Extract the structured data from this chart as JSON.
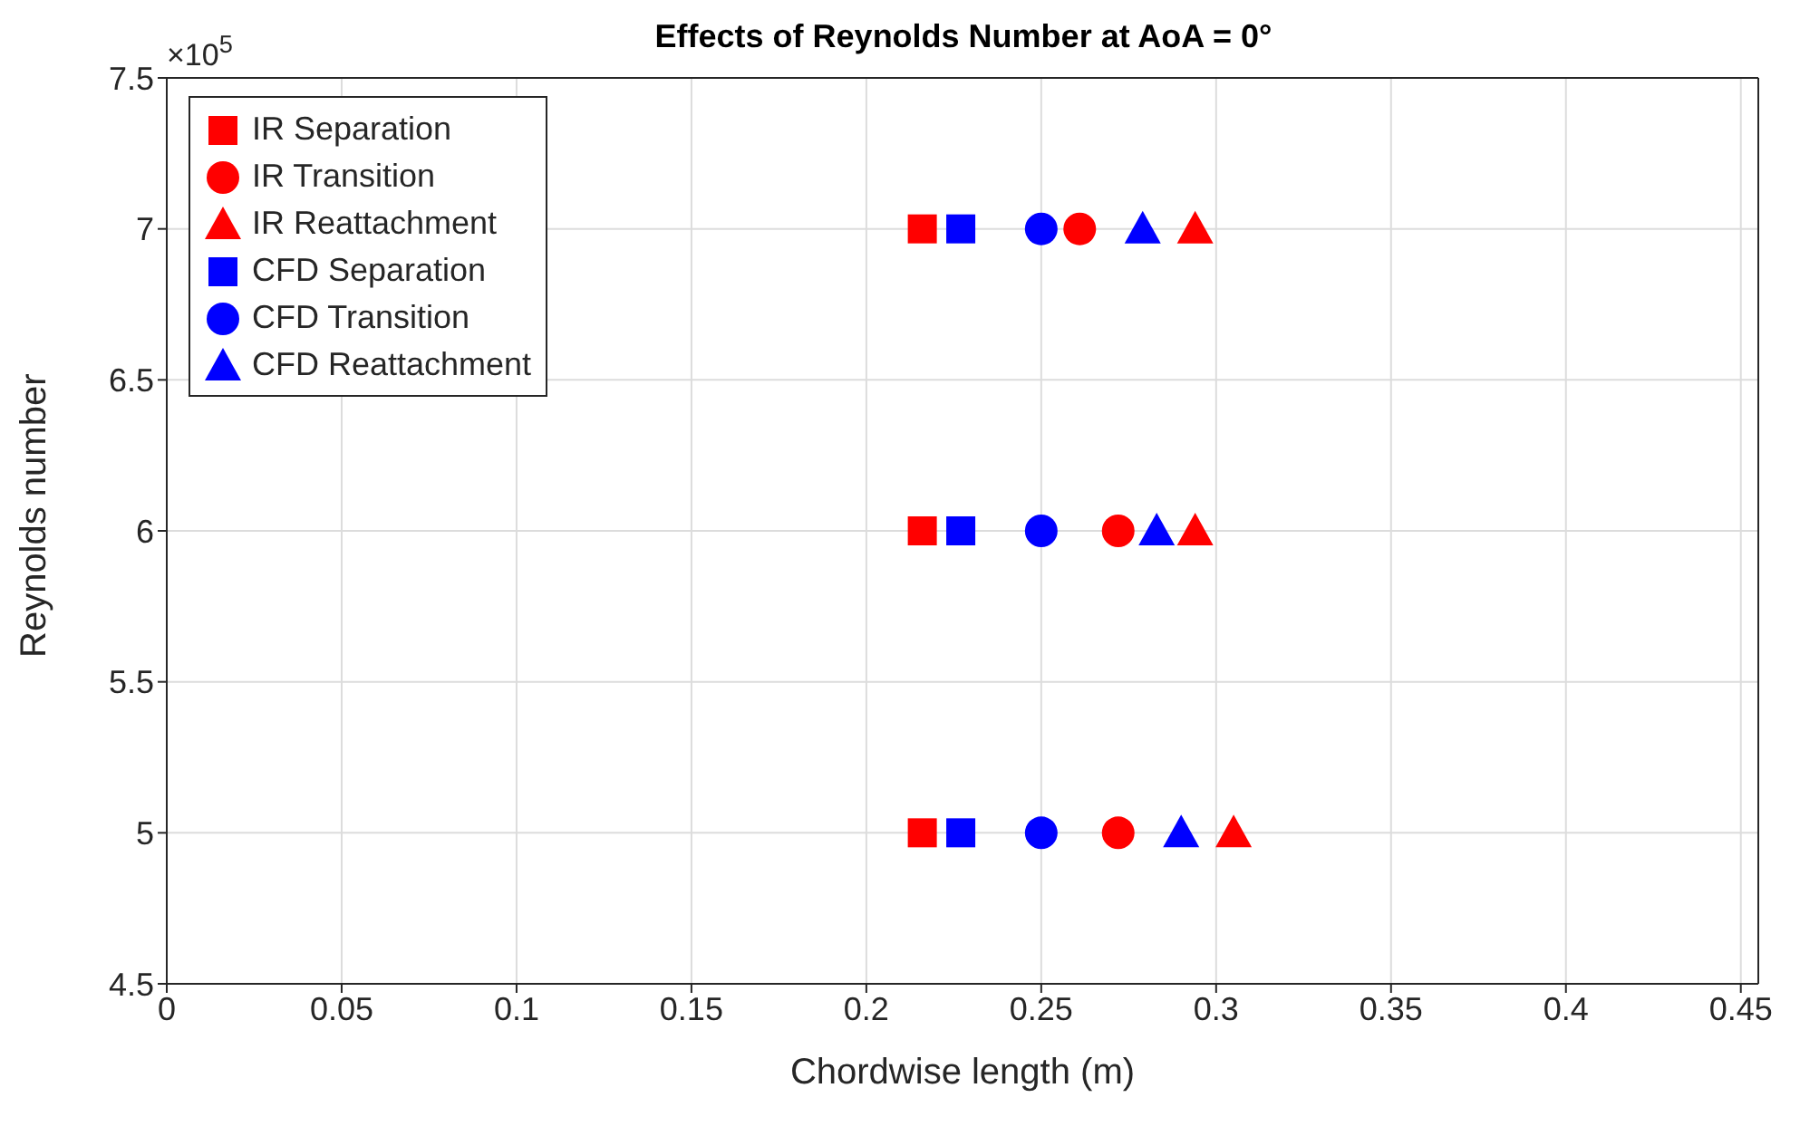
{
  "chart_data": {
    "type": "scatter",
    "title": "Effects of Reynolds Number at AoA = 0°",
    "xlabel": "Chordwise length (m)",
    "ylabel": "Reynolds number",
    "annotations": [
      "×10$^{5}$"
    ],
    "xlim": [
      0,
      0.455
    ],
    "xticks": [
      0,
      0.05,
      0.1,
      0.15,
      0.2,
      0.25,
      0.3,
      0.35,
      0.4,
      0.45
    ],
    "ylim": [
      4.5,
      7.5
    ],
    "yticks": [
      4.5,
      5,
      5.5,
      6,
      6.5,
      7,
      7.5
    ],
    "grid": true,
    "legend": "top left",
    "series": [
      {
        "name": "IR Separation",
        "color": "#ff0000",
        "marker": "square",
        "x": [
          0.216,
          0.216,
          0.216
        ],
        "values": [
          7,
          6,
          5
        ]
      },
      {
        "name": "IR Transition",
        "color": "#ff0000",
        "marker": "circle",
        "x": [
          0.261,
          0.272,
          0.272
        ],
        "values": [
          7,
          6,
          5
        ]
      },
      {
        "name": "IR Reattachment",
        "color": "#ff0000",
        "marker": "triangle",
        "x": [
          0.294,
          0.294,
          0.305
        ],
        "values": [
          7,
          6,
          5
        ]
      },
      {
        "name": "CFD Separation",
        "color": "#0000ff",
        "marker": "square",
        "x": [
          0.227,
          0.227,
          0.227
        ],
        "values": [
          7,
          6,
          5
        ]
      },
      {
        "name": "CFD Transition",
        "color": "#0000ff",
        "marker": "circle",
        "x": [
          0.25,
          0.25,
          0.25
        ],
        "values": [
          7,
          6,
          5
        ]
      },
      {
        "name": "CFD Reattachment",
        "color": "#0000ff",
        "marker": "triangle",
        "x": [
          0.279,
          0.283,
          0.29
        ],
        "values": [
          7,
          6,
          5
        ]
      }
    ]
  }
}
